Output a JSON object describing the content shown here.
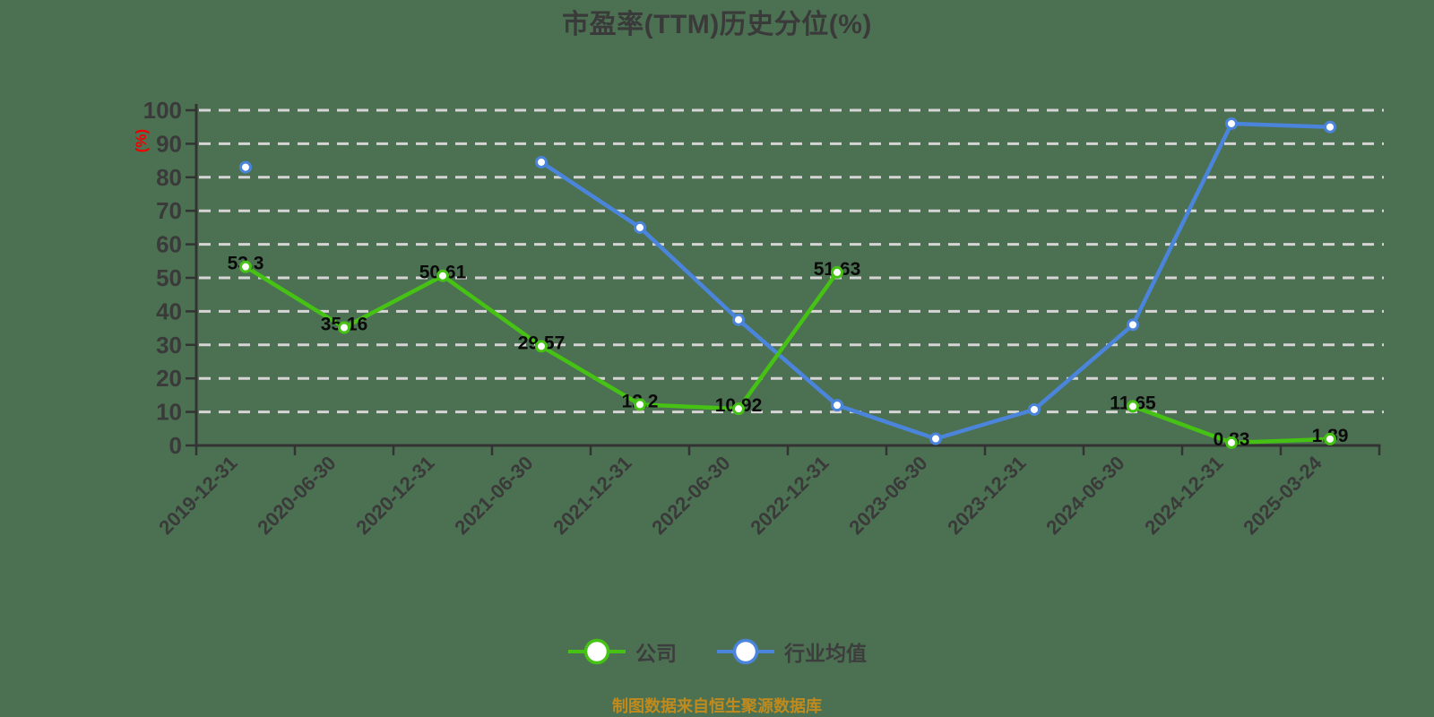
{
  "chart_data": {
    "type": "line",
    "title": "市盈率(TTM)历史分位(%)",
    "y_axis_unit": "(%)",
    "ylim": [
      0,
      100
    ],
    "y_tick_step": 10,
    "grid": "horizontal-dashed",
    "legend_position": "bottom",
    "categories": [
      "2019-12-31",
      "2020-06-30",
      "2020-12-31",
      "2021-06-30",
      "2021-12-31",
      "2022-06-30",
      "2022-12-31",
      "2023-06-30",
      "2023-12-31",
      "2024-06-30",
      "2024-12-31",
      "2025-03-24"
    ],
    "series": [
      {
        "name": "公司",
        "color": "#46c214",
        "show_point_labels": true,
        "values": [
          53.3,
          35.16,
          50.61,
          29.57,
          12.2,
          10.92,
          51.63,
          null,
          null,
          11.65,
          0.83,
          1.89
        ],
        "point_labels": [
          "53.3",
          "35.16",
          "50.61",
          "29.57",
          "12.2",
          "10.92",
          "51.63",
          "",
          "",
          "11.65",
          "0.83",
          "1.89"
        ]
      },
      {
        "name": "行业均值",
        "color": "#4b84db",
        "show_point_labels": false,
        "values": [
          83,
          null,
          null,
          84.5,
          65,
          37.5,
          12,
          2,
          10.7,
          36,
          96,
          95
        ]
      }
    ],
    "source_note": "制图数据来自恒生聚源数据库"
  },
  "colors": {
    "background": "#4c7152",
    "grid_line": "#d5d5d5",
    "axis_line": "#333333",
    "axis_text": "#3a3a3a",
    "title_text": "#3a3a3a",
    "legend_text": "#3d3d3d",
    "point_label": "#0a0a0a",
    "marker_fill": "#ffffff",
    "y_unit_text": "#ee0000",
    "source_note_text": "#bf8a1e"
  }
}
